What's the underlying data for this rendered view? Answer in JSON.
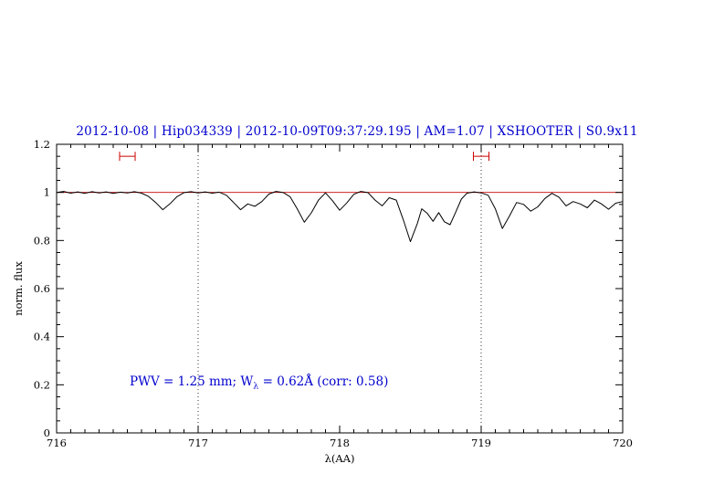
{
  "title": "2012-10-08 | Hip034339 | 2012-10-09T09:37:29.195 | AM=1.07 | XSHOOTER | S0.9x11",
  "annotation": {
    "pre": "PWV = 1.25 mm; W",
    "sub": "λ",
    "post": " = 0.62Å (corr: 0.58)",
    "full_text": "PWV = 1.25 mm; W_λ = 0.62Å (corr: 0.58)"
  },
  "colors": {
    "title": "#0000cd",
    "annotation": "#0000cd",
    "spectrum": "#000000",
    "continuum": "#cc0000",
    "errorbar": "#cc0000",
    "vline": "#333333",
    "frame": "#000000"
  },
  "chart_data": {
    "type": "line",
    "title": "2012-10-08 | Hip034339 | 2012-10-09T09:37:29.195 | AM=1.07 | XSHOOTER | S0.9x11",
    "xlabel": "λ(AA)",
    "ylabel": "norm. flux",
    "xlim": [
      716,
      720
    ],
    "ylim": [
      0,
      1.2
    ],
    "x_ticks": [
      [
        716,
        "716"
      ],
      [
        717,
        "717"
      ],
      [
        718,
        "718"
      ],
      [
        719,
        "719"
      ],
      [
        720,
        "720"
      ]
    ],
    "y_ticks": [
      [
        0,
        "0"
      ],
      [
        0.2,
        "0.2"
      ],
      [
        0.4,
        "0.4"
      ],
      [
        0.6,
        "0.6"
      ],
      [
        0.8,
        "0.8"
      ],
      [
        1,
        "1"
      ],
      [
        1.2,
        "1.2"
      ]
    ],
    "x_minor_step": 0.1,
    "y_minor_step": 0.05,
    "grid": false,
    "legend": "none",
    "vlines": [
      717,
      719
    ],
    "continuum_level": 1.0,
    "error_bars": [
      {
        "x": 716.5,
        "y": 1.15,
        "half_width": 0.055
      },
      {
        "x": 719.0,
        "y": 1.15,
        "half_width": 0.055
      }
    ],
    "series": [
      {
        "name": "observed spectrum",
        "color": "#000000",
        "points": [
          [
            716.0,
            1.0
          ],
          [
            716.05,
            1.004
          ],
          [
            716.1,
            0.997
          ],
          [
            716.15,
            1.002
          ],
          [
            716.2,
            0.996
          ],
          [
            716.25,
            1.003
          ],
          [
            716.3,
            0.998
          ],
          [
            716.35,
            1.002
          ],
          [
            716.4,
            0.996
          ],
          [
            716.45,
            1.001
          ],
          [
            716.5,
            0.998
          ],
          [
            716.55,
            1.003
          ],
          [
            716.6,
            0.997
          ],
          [
            716.65,
            0.983
          ],
          [
            716.7,
            0.958
          ],
          [
            716.75,
            0.928
          ],
          [
            716.8,
            0.952
          ],
          [
            716.85,
            0.982
          ],
          [
            716.9,
            0.999
          ],
          [
            716.95,
            1.003
          ],
          [
            717.0,
            0.998
          ],
          [
            717.05,
            1.002
          ],
          [
            717.1,
            0.997
          ],
          [
            717.15,
            1.001
          ],
          [
            717.2,
            0.988
          ],
          [
            717.25,
            0.958
          ],
          [
            717.3,
            0.928
          ],
          [
            717.35,
            0.952
          ],
          [
            717.4,
            0.942
          ],
          [
            717.45,
            0.962
          ],
          [
            717.5,
            0.993
          ],
          [
            717.55,
            1.004
          ],
          [
            717.6,
            1.0
          ],
          [
            717.65,
            0.982
          ],
          [
            717.7,
            0.932
          ],
          [
            717.75,
            0.876
          ],
          [
            717.8,
            0.915
          ],
          [
            717.85,
            0.968
          ],
          [
            717.9,
            0.998
          ],
          [
            717.95,
            0.965
          ],
          [
            718.0,
            0.926
          ],
          [
            718.05,
            0.956
          ],
          [
            718.1,
            0.992
          ],
          [
            718.15,
            1.004
          ],
          [
            718.2,
            0.999
          ],
          [
            718.25,
            0.968
          ],
          [
            718.3,
            0.944
          ],
          [
            718.35,
            0.978
          ],
          [
            718.4,
            0.968
          ],
          [
            718.45,
            0.885
          ],
          [
            718.5,
            0.795
          ],
          [
            718.55,
            0.872
          ],
          [
            718.58,
            0.932
          ],
          [
            718.62,
            0.912
          ],
          [
            718.66,
            0.88
          ],
          [
            718.7,
            0.916
          ],
          [
            718.74,
            0.878
          ],
          [
            718.78,
            0.866
          ],
          [
            718.82,
            0.918
          ],
          [
            718.86,
            0.972
          ],
          [
            718.9,
            0.997
          ],
          [
            718.95,
            1.002
          ],
          [
            719.0,
            0.998
          ],
          [
            719.05,
            0.988
          ],
          [
            719.1,
            0.932
          ],
          [
            719.15,
            0.85
          ],
          [
            719.2,
            0.902
          ],
          [
            719.25,
            0.958
          ],
          [
            719.3,
            0.95
          ],
          [
            719.35,
            0.922
          ],
          [
            719.4,
            0.94
          ],
          [
            719.45,
            0.975
          ],
          [
            719.5,
            0.996
          ],
          [
            719.55,
            0.98
          ],
          [
            719.6,
            0.944
          ],
          [
            719.65,
            0.962
          ],
          [
            719.7,
            0.952
          ],
          [
            719.75,
            0.936
          ],
          [
            719.8,
            0.968
          ],
          [
            719.85,
            0.952
          ],
          [
            719.9,
            0.93
          ],
          [
            719.95,
            0.955
          ],
          [
            720.0,
            0.962
          ]
        ]
      }
    ]
  }
}
